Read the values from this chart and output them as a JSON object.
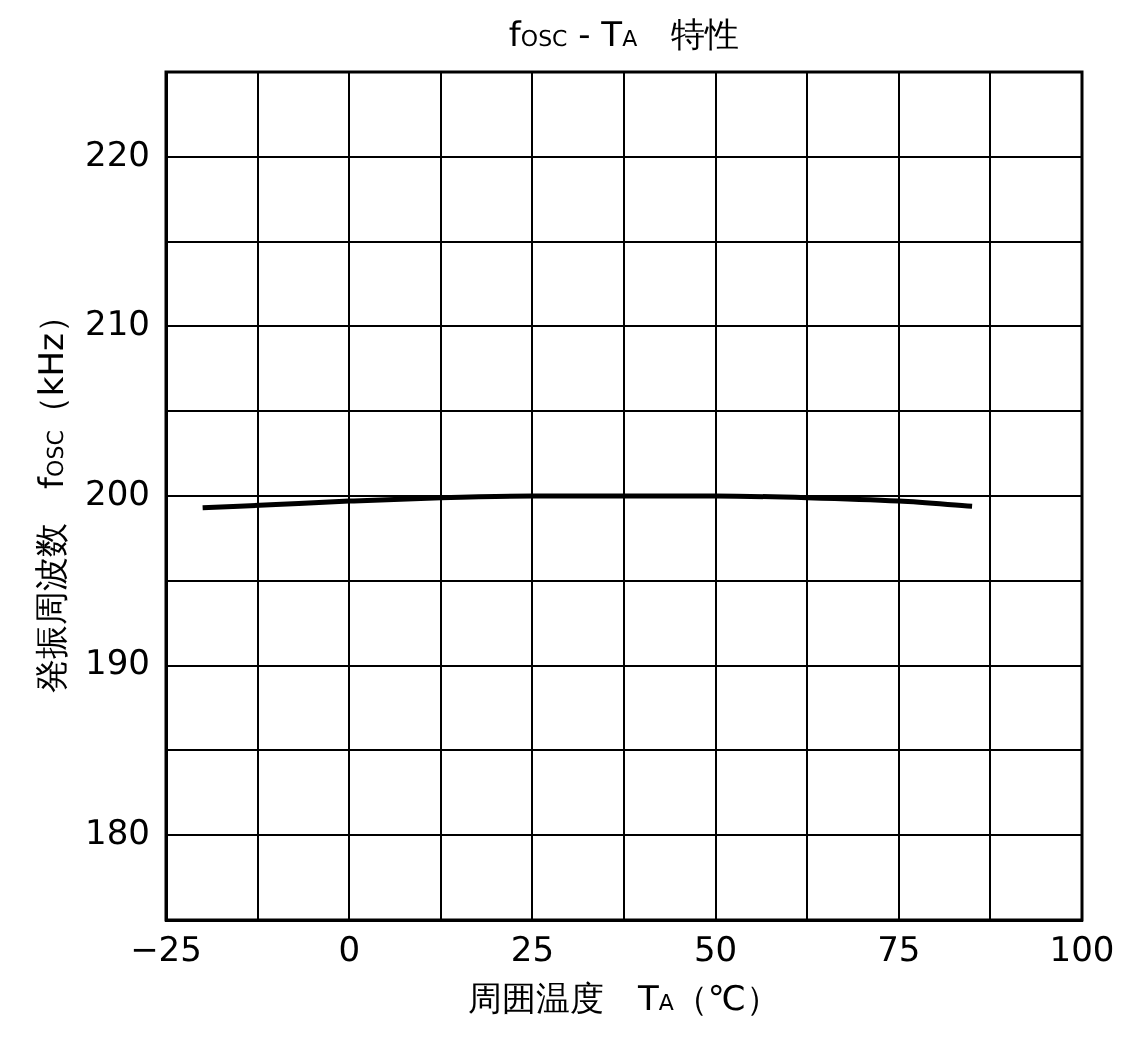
{
  "chart_data": {
    "type": "line",
    "title": "f$_{OSC}$ - T$_{A}$　特性",
    "xlabel": "周囲温度　T$_{A}$（℃）",
    "ylabel": "発振周波数　f$_{OSC}$（kHz）",
    "x": [
      -20,
      -10,
      0,
      12.5,
      25,
      37.5,
      50,
      62.5,
      75,
      85
    ],
    "series": [
      {
        "color": "#000000",
        "values": [
          199.3,
          199.5,
          199.7,
          199.9,
          200,
          200,
          200,
          199.9,
          199.7,
          199.4
        ]
      }
    ],
    "xlim": [
      -25,
      100
    ],
    "xticks": [
      {
        "value": -25,
        "label": "−25"
      },
      {
        "value": -12.5,
        "label": null
      },
      0,
      {
        "value": 12.5,
        "label": null
      },
      25,
      {
        "value": 37.5,
        "label": null
      },
      50,
      {
        "value": 62.5,
        "label": null
      },
      75,
      {
        "value": 87.5,
        "label": null
      },
      100
    ],
    "ylim": [
      175,
      225
    ],
    "yticks": [
      {
        "value": 175,
        "label": null
      },
      180,
      {
        "value": 185,
        "label": null
      },
      190,
      {
        "value": 195,
        "label": null
      },
      200,
      {
        "value": 205,
        "label": null
      },
      210,
      {
        "value": 215,
        "label": null
      },
      220,
      {
        "value": 225,
        "label": null
      }
    ],
    "grid": true,
    "legend": false,
    "marker": "none",
    "line_style": "solid"
  }
}
